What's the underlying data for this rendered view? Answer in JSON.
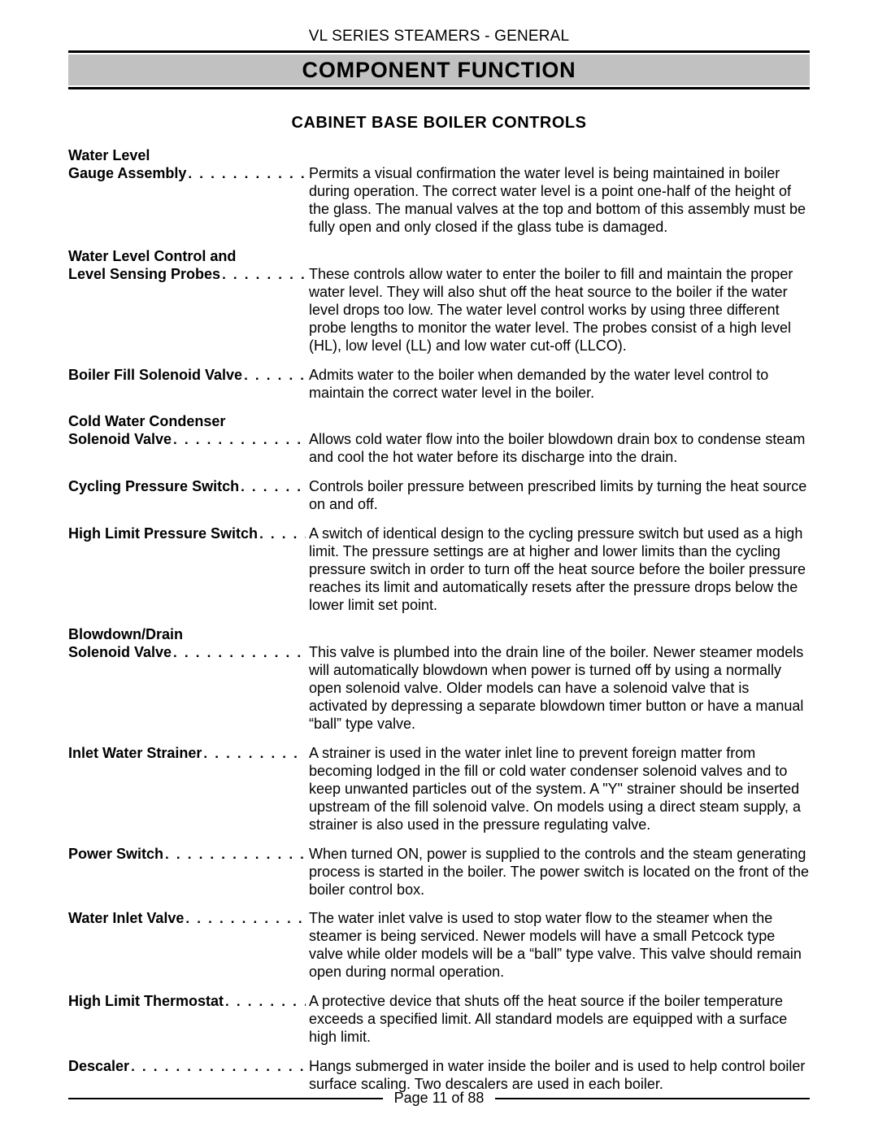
{
  "header": {
    "line": "VL SERIES STEAMERS - GENERAL",
    "title": "COMPONENT FUNCTION"
  },
  "section": {
    "heading": "CABINET BASE BOILER CONTROLS"
  },
  "items": [
    {
      "term_lines": [
        "Water Level",
        "Gauge Assembly"
      ],
      "desc": "Permits a visual confirmation the water level is being maintained in boiler during operation. The correct water level is a point one-half of the height of the glass. The manual valves at the top and bottom of this assembly must be fully open and only closed if the glass tube is damaged."
    },
    {
      "term_lines": [
        "Water Level Control and",
        "Level Sensing Probes"
      ],
      "desc": "These controls allow water to enter the boiler to fill and maintain the proper water level. They will also shut off the heat source to the boiler if the water level drops too low. The water level control works by using three different probe lengths to monitor the water level. The probes consist of a high level (HL), low level (LL) and low water cut-off (LLCO)."
    },
    {
      "term_lines": [
        "Boiler Fill Solenoid Valve"
      ],
      "desc": "Admits water to the boiler when demanded by the water level control to maintain the correct water level in the boiler."
    },
    {
      "term_lines": [
        "Cold Water Condenser",
        "Solenoid Valve"
      ],
      "desc": "Allows cold water flow into the boiler blowdown drain box to condense steam and cool the hot water before its discharge into the drain."
    },
    {
      "term_lines": [
        "Cycling Pressure Switch"
      ],
      "desc": "Controls boiler pressure between prescribed limits by turning the heat source on and off."
    },
    {
      "term_lines": [
        "High Limit Pressure Switch"
      ],
      "desc": "A switch of identical design to the cycling pressure switch but used as a high limit. The pressure settings are at higher and lower limits than the cycling pressure switch in order to turn off the heat source before the boiler pressure reaches its limit and automatically resets after the pressure drops below the lower limit set point."
    },
    {
      "term_lines": [
        "Blowdown/Drain",
        "Solenoid Valve"
      ],
      "desc": "This valve is plumbed into the drain line of the boiler. Newer steamer models will automatically blowdown when power is turned off by using a normally open solenoid valve. Older models can have a solenoid valve that is activated by depressing a separate blowdown timer button or have a manual “ball” type valve."
    },
    {
      "term_lines": [
        "Inlet Water Strainer"
      ],
      "desc": "A strainer is used in the water inlet line to prevent foreign matter from becoming lodged in the fill or cold water condenser solenoid valves and to keep unwanted particles out of the system. A \"Y\" strainer should be inserted upstream of the fill solenoid valve. On models using a direct steam supply, a strainer is also used in the pressure regulating valve."
    },
    {
      "term_lines": [
        "Power Switch"
      ],
      "desc": "When turned ON, power is supplied to the controls and the steam generating process is started in the boiler. The power switch is located on the front of the boiler control box."
    },
    {
      "term_lines": [
        "Water Inlet Valve"
      ],
      "desc": "The water inlet valve is used to stop water flow to the steamer when the steamer is being serviced. Newer models will have a small Petcock type valve while older models will be a “ball” type valve. This valve should remain open during normal operation."
    },
    {
      "term_lines": [
        "High Limit Thermostat"
      ],
      "desc": "A protective device that shuts off the heat source if the boiler temperature exceeds a specified limit. All standard models are equipped with a surface high limit."
    },
    {
      "term_lines": [
        "Descaler"
      ],
      "desc": "Hangs submerged in water inside the boiler and is used to help control boiler surface scaling. Two descalers are used in each boiler."
    }
  ],
  "footer": {
    "page_label": "Page 11 of  88"
  }
}
